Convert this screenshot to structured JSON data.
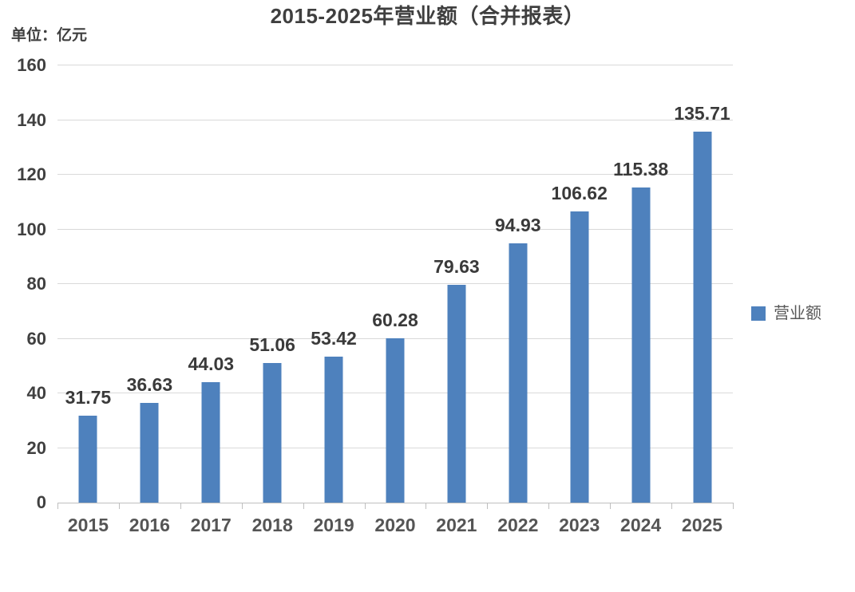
{
  "chart_data": {
    "type": "bar",
    "title": "2015-2025年营业额（合并报表）",
    "unit_label": "单位：亿元",
    "categories": [
      "2015",
      "2016",
      "2017",
      "2018",
      "2019",
      "2020",
      "2021",
      "2022",
      "2023",
      "2024",
      "2025"
    ],
    "series": [
      {
        "name": "营业额",
        "values": [
          31.75,
          36.63,
          44.03,
          51.06,
          53.42,
          60.28,
          79.63,
          94.93,
          106.62,
          115.38,
          135.71
        ]
      }
    ],
    "value_labels": [
      "31.75",
      "36.63",
      "44.03",
      "51.06",
      "53.42",
      "60.28",
      "79.63",
      "94.93",
      "106.62",
      "115.38",
      "135.71"
    ],
    "xlabel": "",
    "ylabel": "",
    "ylim": [
      0,
      160
    ],
    "yticks": [
      0,
      20,
      40,
      60,
      80,
      100,
      120,
      140,
      160
    ],
    "grid": true,
    "legend_position": "right",
    "colors": {
      "bar": "#4E81BD",
      "gridline": "#D9D9D9",
      "axis": "#BFBFBF",
      "label_text": "#3A3A3A",
      "axis_text": "#404040",
      "legend_text": "#595959"
    }
  }
}
